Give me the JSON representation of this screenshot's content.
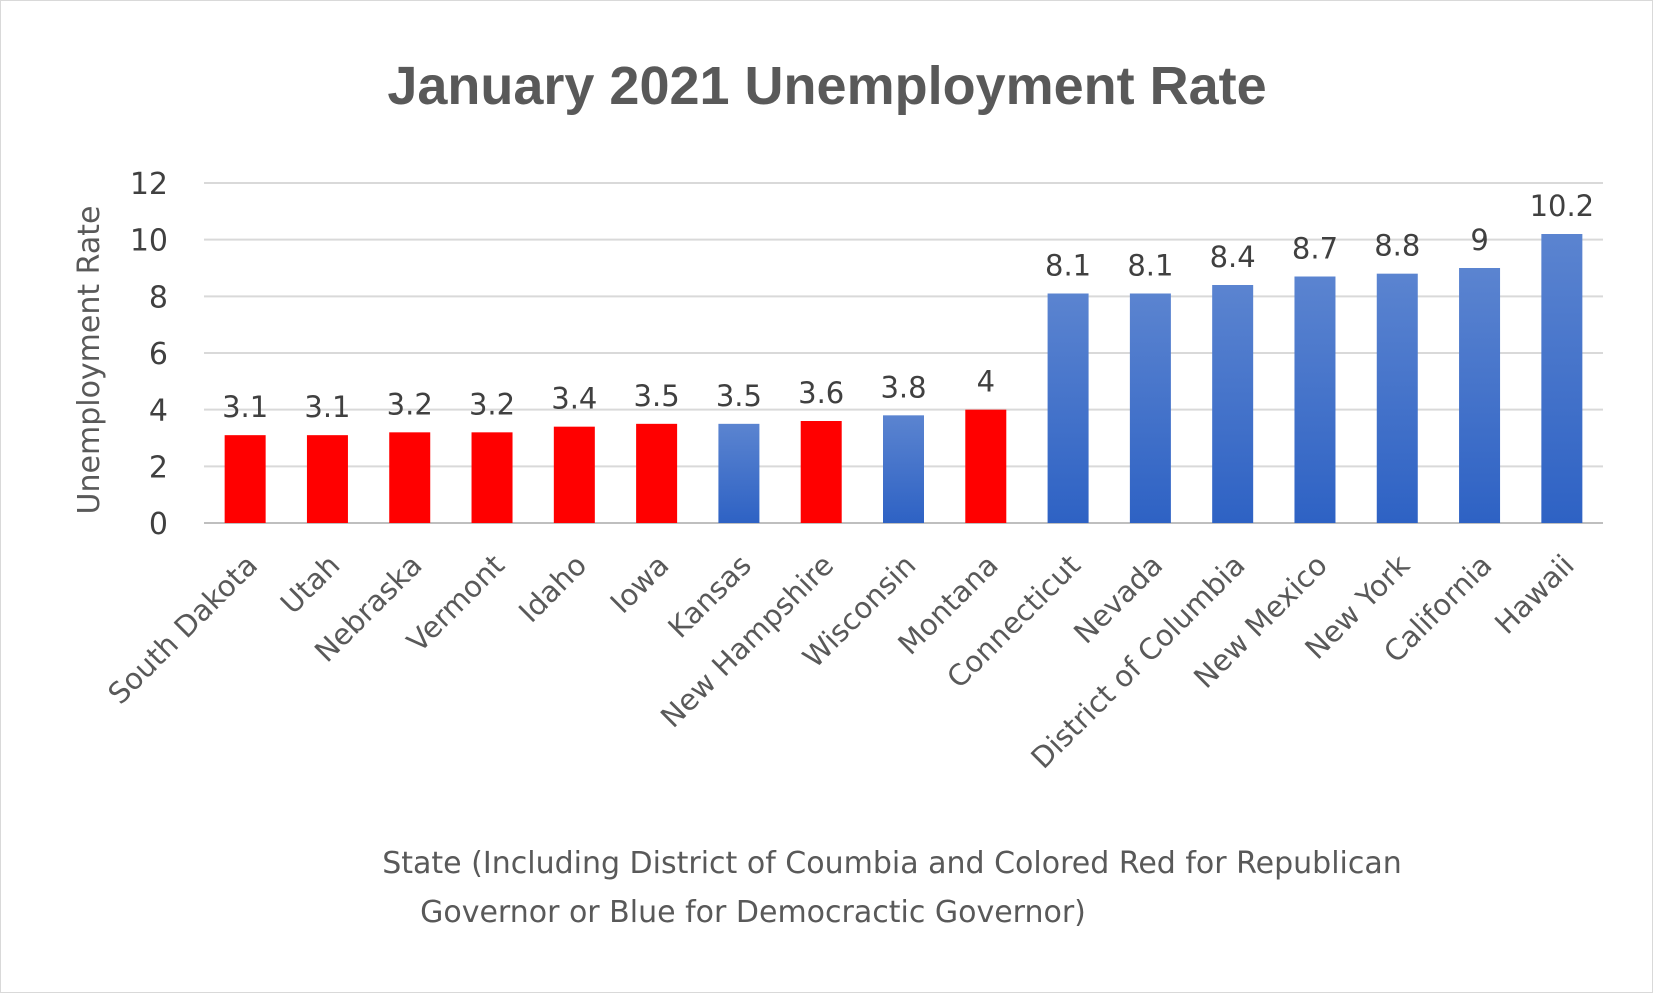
{
  "chart_data": {
    "type": "bar",
    "title": "January 2021 Unemployment Rate",
    "ylabel": "Unemployment Rate",
    "xlabel_lines": [
      "State (Including District of Coumbia and Colored Red for Republican",
      "Governor or Blue for Democractic Governor)"
    ],
    "ylim": [
      0,
      12
    ],
    "yticks": [
      0,
      2,
      4,
      6,
      8,
      10,
      12
    ],
    "grid": true,
    "categories": [
      "South Dakota",
      "Utah",
      "Nebraska",
      "Vermont",
      "Idaho",
      "Iowa",
      "Kansas",
      "New Hampshire",
      "Wisconsin",
      "Montana",
      "Connecticut",
      "Nevada",
      "District of Columbia",
      "New Mexico",
      "New York",
      "California",
      "Hawaii"
    ],
    "values": [
      3.1,
      3.1,
      3.2,
      3.2,
      3.4,
      3.5,
      3.5,
      3.6,
      3.8,
      4,
      8.1,
      8.1,
      8.4,
      8.7,
      8.8,
      9,
      10.2
    ],
    "data_labels": [
      "3.1",
      "3.1",
      "3.2",
      "3.2",
      "3.4",
      "3.5",
      "3.5",
      "3.6",
      "3.8",
      "4",
      "8.1",
      "8.1",
      "8.4",
      "8.7",
      "8.8",
      "9",
      "10.2"
    ],
    "party": [
      "R",
      "R",
      "R",
      "R",
      "R",
      "R",
      "D",
      "R",
      "D",
      "R",
      "D",
      "D",
      "D",
      "D",
      "D",
      "D",
      "D"
    ],
    "colors": {
      "R": "#ff0000",
      "D_top": "#5b84d0",
      "D_bottom": "#2e62c4",
      "grid": "#d9d9d9",
      "axis": "#bfbfbf"
    }
  }
}
